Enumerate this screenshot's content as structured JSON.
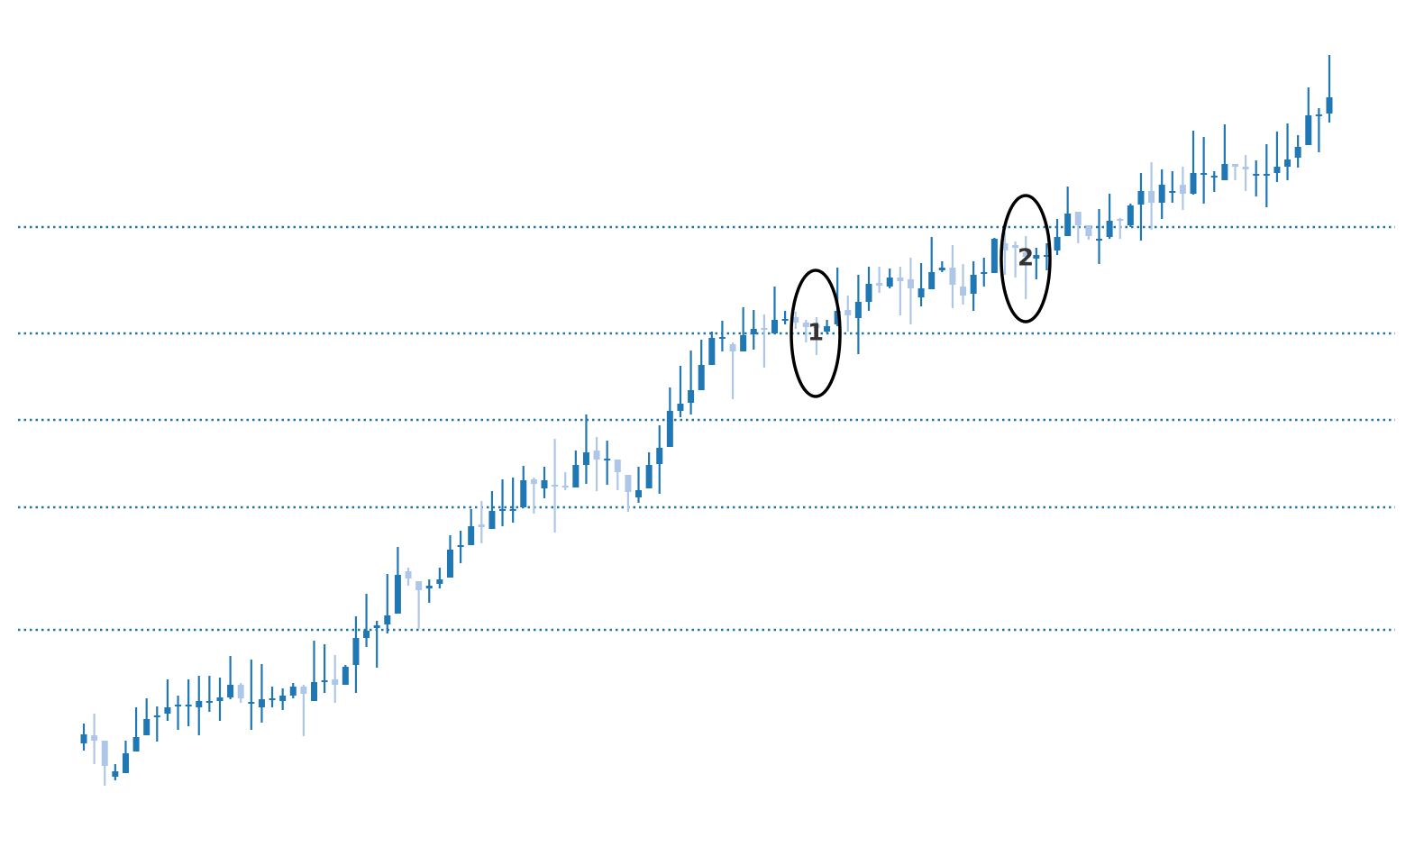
{
  "chart_data": {
    "type": "candlestick",
    "ylim": [
      0,
      940
    ],
    "levels": [
      688,
      570,
      474,
      377,
      241
    ],
    "level_color": "#2077a0",
    "up_color": "#1f77b4",
    "down_color": "#aec7e8",
    "annotations": [
      {
        "text": "1"
      },
      {
        "text": "2"
      }
    ],
    "open": [
      115,
      124,
      118,
      78,
      82,
      106,
      124,
      144,
      148,
      157,
      157,
      155,
      161,
      162,
      166,
      180,
      160,
      155,
      164,
      162,
      168,
      178,
      162,
      184,
      186,
      180,
      202,
      232,
      243,
      247,
      259,
      306,
      295,
      287,
      292,
      299,
      333,
      335,
      358,
      353,
      374,
      374,
      377,
      408,
      398,
      402,
      401,
      399,
      424,
      440,
      430,
      430,
      413,
      388,
      398,
      425,
      444,
      484,
      493,
      507,
      535,
      564,
      558,
      550,
      569,
      576,
      570,
      585,
      588,
      582,
      580,
      572,
      580,
      596,
      587,
      605,
      626,
      622,
      632,
      630,
      610,
      619,
      640,
      643,
      622,
      614,
      637,
      637,
      670,
      668,
      660,
      653,
      656,
      662,
      678,
      705,
      690,
      674,
      677,
      697,
      690,
      713,
      728,
      715,
      727,
      735,
      725,
      747,
      744,
      740,
      758,
      755,
      746,
      746,
      748,
      755,
      765,
      779,
      812,
      814
    ],
    "high": [
      137,
      148,
      118,
      92,
      118,
      155,
      165,
      156,
      186,
      168,
      186,
      190,
      190,
      188,
      212,
      182,
      208,
      203,
      178,
      176,
      182,
      180,
      229,
      225,
      213,
      202,
      256,
      281,
      251,
      303,
      333,
      310,
      295,
      297,
      310,
      346,
      351,
      375,
      384,
      395,
      408,
      410,
      423,
      410,
      422,
      453,
      416,
      440,
      480,
      455,
      451,
      430,
      413,
      422,
      438,
      468,
      510,
      534,
      551,
      563,
      572,
      584,
      560,
      599,
      596,
      591,
      622,
      595,
      594,
      585,
      588,
      585,
      643,
      612,
      635,
      644,
      644,
      642,
      644,
      654,
      648,
      677,
      650,
      668,
      647,
      650,
      654,
      676,
      682,
      672,
      678,
      665,
      670,
      697,
      733,
      705,
      690,
      708,
      725,
      698,
      714,
      748,
      760,
      752,
      750,
      755,
      795,
      788,
      750,
      802,
      758,
      768,
      762,
      780,
      794,
      803,
      790,
      843,
      820,
      879
    ],
    "low": [
      107,
      92,
      68,
      74,
      82,
      106,
      124,
      117,
      140,
      130,
      134,
      124,
      150,
      140,
      164,
      160,
      130,
      138,
      155,
      152,
      165,
      123,
      162,
      171,
      160,
      180,
      171,
      222,
      199,
      237,
      259,
      290,
      242,
      271,
      287,
      299,
      315,
      335,
      337,
      353,
      356,
      360,
      377,
      370,
      387,
      349,
      396,
      399,
      403,
      395,
      402,
      396,
      372,
      382,
      398,
      392,
      444,
      477,
      480,
      507,
      535,
      550,
      497,
      550,
      552,
      532,
      570,
      580,
      575,
      560,
      546,
      570,
      578,
      572,
      547,
      595,
      615,
      620,
      590,
      580,
      600,
      619,
      638,
      598,
      602,
      595,
      622,
      637,
      635,
      632,
      608,
      630,
      640,
      657,
      678,
      670,
      674,
      647,
      675,
      675,
      688,
      673,
      685,
      697,
      715,
      707,
      724,
      714,
      727,
      740,
      740,
      728,
      722,
      710,
      738,
      740,
      754,
      779,
      771,
      804
    ],
    "close": [
      125,
      118,
      90,
      84,
      104,
      122,
      142,
      146,
      155,
      158,
      158,
      162,
      162,
      166,
      180,
      165,
      161,
      164,
      165,
      168,
      178,
      170,
      183,
      185,
      180,
      200,
      232,
      240,
      246,
      257,
      302,
      298,
      285,
      290,
      297,
      330,
      335,
      356,
      355,
      373,
      375,
      375,
      407,
      403,
      407,
      400,
      399,
      424,
      438,
      430,
      431,
      416,
      394,
      396,
      424,
      443,
      484,
      492,
      507,
      535,
      565,
      566,
      550,
      568,
      575,
      574,
      585,
      586,
      582,
      577,
      576,
      578,
      595,
      590,
      605,
      625,
      623,
      632,
      628,
      620,
      620,
      638,
      643,
      624,
      612,
      635,
      638,
      675,
      662,
      665,
      655,
      657,
      657,
      677,
      703,
      690,
      678,
      675,
      695,
      695,
      712,
      728,
      715,
      735,
      728,
      725,
      748,
      748,
      745,
      758,
      755,
      752,
      747,
      747,
      755,
      763,
      777,
      812,
      813,
      832
    ]
  }
}
